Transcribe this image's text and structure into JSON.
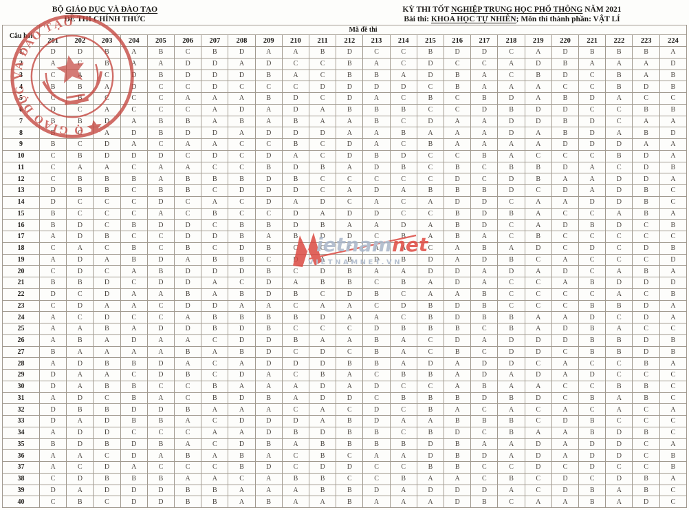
{
  "document": {
    "left_org_pre": "BỘ ",
    "left_org_underlined": "GIÁO DỤC VÀ ĐÀO TẠO",
    "left_subtitle": "ĐỀ THI CHÍNH THỨC",
    "right_title_pre": "KỲ THI TỐT ",
    "right_title_underlined": "NGHIỆP TRUNG HỌC PHỔ THÔNG",
    "right_title_post": " NĂM 2021",
    "right_sub_pre": "Bài thi:  ",
    "right_sub_underlined": "KHOA HỌC TỰ NHIÊN",
    "right_sub_post": "; Môn thi thành phần: VẬT LÍ"
  },
  "table": {
    "question_col_header": "Câu hỏi",
    "code_group_header": "Mã đề thi",
    "exam_codes": [
      "201",
      "202",
      "203",
      "204",
      "205",
      "206",
      "207",
      "208",
      "209",
      "210",
      "211",
      "212",
      "213",
      "214",
      "215",
      "216",
      "217",
      "218",
      "219",
      "220",
      "221",
      "222",
      "223",
      "224"
    ],
    "rows": [
      {
        "q": "1",
        "answers": "DDBABCBDAABDCCBDDCADBBBA"
      },
      {
        "q": "2",
        "answers": "ACBAADDADCCBACDCCADBAAAD"
      },
      {
        "q": "3",
        "answers": "CACDBDDDBACBBADBACBDCBAB"
      },
      {
        "q": "4",
        "answers": "BBADCCDCCCDDDDCBAAACCBDB"
      },
      {
        "q": "5",
        "answers": "CBCCCAAABDCDACBCBDABDACC"
      },
      {
        "q": "6",
        "answers": "DCACCCADADABBBCCDBDDCCBB"
      },
      {
        "q": "7",
        "answers": "BBDABBABABAABCDAADDBDCAA"
      },
      {
        "q": "8",
        "answers": "BCADBDDADDDAABAAADABDABD"
      },
      {
        "q": "9",
        "answers": "BCDACAACCBCDACBAAAADDDAA"
      },
      {
        "q": "10",
        "answers": "CBDDDCDCDACDBDCCBACCCBDA"
      },
      {
        "q": "11",
        "answers": "CAACAACCBDBADBCBCBBDACDB"
      },
      {
        "q": "12",
        "answers": "CBBBABBBDBCCCCCDCDBAADDA"
      },
      {
        "q": "13",
        "answers": "DBBCBBCDDDCADABBBDCDADBC"
      },
      {
        "q": "14",
        "answers": "DCCCDCACDADCACADDCAADDBC"
      },
      {
        "q": "15",
        "answers": "BCCCACBCCDADDCCBDBACCABA"
      },
      {
        "q": "16",
        "answers": "BDCBDDCBBDBAADABDCADBDCB"
      },
      {
        "q": "17",
        "answers": "ADBCCDDBABDDCBABACBCCCCC"
      },
      {
        "q": "18",
        "answers": "CACBCBCDBCCCAACABADCDCDB"
      },
      {
        "q": "19",
        "answers": "ADABDABBCDABDBDADBCACCCD"
      },
      {
        "q": "20",
        "answers": "CDCABDDDBCDBAADDADADCABA"
      },
      {
        "q": "21",
        "answers": "BBDCDDACDABBCBADACCABDDD"
      },
      {
        "q": "22",
        "answers": "DCDAABABDBCDBCAABCCCCACB"
      },
      {
        "q": "23",
        "answers": "CDAACDDAACAACDBDBCCCBBDA"
      },
      {
        "q": "24",
        "answers": "ACDCCABBBBDAACBDBBAADCDA"
      },
      {
        "q": "25",
        "answers": "AABADDBDBCCCDBBBCBADBACC"
      },
      {
        "q": "26",
        "answers": "ABADAACDDBAABACDADDDBBDB"
      },
      {
        "q": "27",
        "answers": "BAAAABABDCDCBACBCDDCBBDB"
      },
      {
        "q": "28",
        "answers": "ADBBDACADDDBBADADDCACCBA"
      },
      {
        "q": "29",
        "answers": "DAACDBCDACBACBBADADADCCC"
      },
      {
        "q": "30",
        "answers": "DABBCCBAAADADCCABAACCBBC"
      },
      {
        "q": "31",
        "answers": "ADCBACBDBADDCBBBDBDCBABC"
      },
      {
        "q": "32",
        "answers": "DBBDDBAAACACDCBACACACACA"
      },
      {
        "q": "33",
        "answers": "DADBBACDDDABDAABBBCDBCCC"
      },
      {
        "q": "34",
        "answers": "ADDCCCAADBDBBCBDCBAABDBC"
      },
      {
        "q": "35",
        "answers": "BDBDBACDBABBBBDBAADADDCA"
      },
      {
        "q": "36",
        "answers": "AACDABABACBCAADBDADADDCB"
      },
      {
        "q": "37",
        "answers": "ACDACCCBDCDDCCBBCCDCDCCB"
      },
      {
        "q": "38",
        "answers": "CDBBBAACABBCCBAACBCDCDBA"
      },
      {
        "q": "39",
        "answers": "DADDDBBAAABBDADDDACDBABC"
      },
      {
        "q": "40",
        "answers": "CBCDDBBABAABAAADBCAABADC"
      }
    ]
  },
  "stamp": {
    "arc_text": "BỘ GIÁO DỤC VÀ ĐÀO TẠO",
    "color": "#c4453e"
  },
  "watermark": {
    "brand_gray": "ietnam",
    "brand_red": "net",
    "domain": "VIETNAMNET.VN",
    "red": "#e04b43",
    "gray_blue": "#a9b6c9"
  },
  "colors": {
    "grid_line": "#a19a8f",
    "text": "#4a453f",
    "page_bg": "#fdfdfb"
  }
}
